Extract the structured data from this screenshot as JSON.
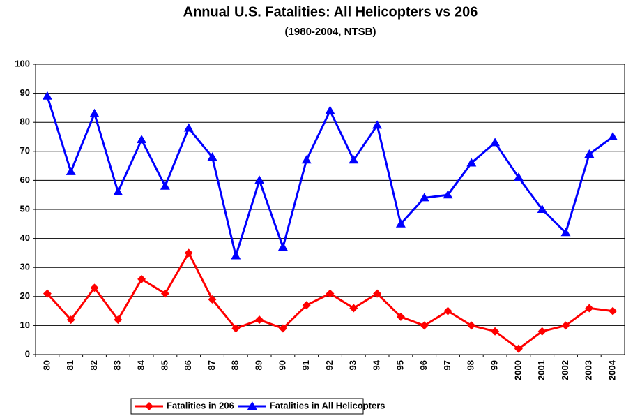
{
  "chart_data": {
    "type": "line",
    "title": "Annual U.S. Fatalities: All Helicopters vs 206",
    "subtitle": "(1980-2004, NTSB)",
    "categories": [
      "80",
      "81",
      "82",
      "83",
      "84",
      "85",
      "86",
      "87",
      "88",
      "89",
      "90",
      "91",
      "92",
      "93",
      "94",
      "95",
      "96",
      "97",
      "98",
      "99",
      "2000",
      "2001",
      "2002",
      "2003",
      "2004"
    ],
    "series": [
      {
        "name": "Fatalities in 206",
        "color": "#ff0000",
        "marker": "diamond",
        "values": [
          21,
          12,
          23,
          12,
          26,
          21,
          35,
          19,
          9,
          12,
          9,
          17,
          21,
          16,
          21,
          13,
          10,
          15,
          10,
          8,
          2,
          8,
          10,
          16,
          15
        ]
      },
      {
        "name": "Fatalities in All Helicopters",
        "color": "#0000ff",
        "marker": "triangle",
        "values": [
          89,
          63,
          83,
          56,
          74,
          58,
          78,
          68,
          34,
          60,
          37,
          67,
          84,
          67,
          79,
          45,
          54,
          55,
          66,
          73,
          61,
          50,
          42,
          69,
          75
        ]
      }
    ],
    "ylim": [
      0,
      100
    ],
    "yticks": [
      0,
      10,
      20,
      30,
      40,
      50,
      60,
      70,
      80,
      90,
      100
    ],
    "grid": true,
    "legend": "bottom"
  }
}
